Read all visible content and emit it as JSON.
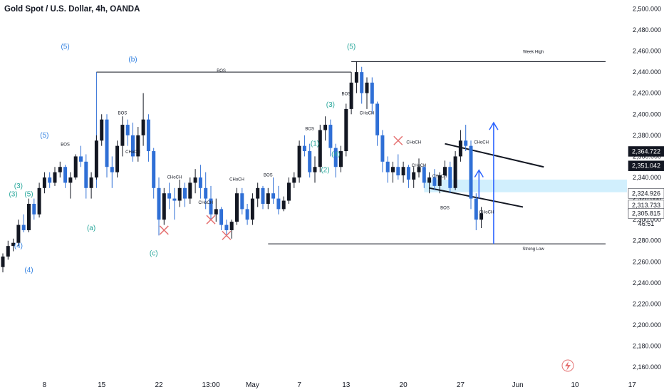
{
  "chart_data": {
    "type": "candlestick",
    "title": "Gold Spot / U.S. Dollar, 4h, OANDA",
    "y_range": [
      2150,
      2505
    ],
    "y_ticks": [
      "2,160.000",
      "2,180.000",
      "2,200.000",
      "2,220.000",
      "2,240.000",
      "2,260.000",
      "2,280.000",
      "2,300.000",
      "2,320.000",
      "2,340.000",
      "2,360.000",
      "2,380.000",
      "2,400.000",
      "2,420.000",
      "2,440.000",
      "2,460.000",
      "2,480.000",
      "2,500.000"
    ],
    "y_tick_values": [
      2160,
      2180,
      2200,
      2220,
      2240,
      2260,
      2280,
      2300,
      2320,
      2340,
      2360,
      2380,
      2400,
      2420,
      2440,
      2460,
      2480,
      2500
    ],
    "x_ticks": [
      {
        "label": "8",
        "i": 8
      },
      {
        "label": "15",
        "i": 19
      },
      {
        "label": "22",
        "i": 30
      },
      {
        "label": "13:00",
        "i": 40
      },
      {
        "label": "May",
        "i": 48
      },
      {
        "label": "7",
        "i": 57
      },
      {
        "label": "13",
        "i": 66
      },
      {
        "label": "20",
        "i": 77
      },
      {
        "label": "27",
        "i": 88
      },
      {
        "label": "Jun",
        "i": 99
      },
      {
        "label": "10",
        "i": 110
      },
      {
        "label": "17",
        "i": 121
      }
    ],
    "candles": [
      [
        2255,
        2268,
        2250,
        2265
      ],
      [
        2265,
        2280,
        2262,
        2275
      ],
      [
        2275,
        2282,
        2270,
        2278
      ],
      [
        2278,
        2300,
        2275,
        2295
      ],
      [
        2295,
        2305,
        2288,
        2290
      ],
      [
        2290,
        2320,
        2288,
        2315
      ],
      [
        2315,
        2320,
        2300,
        2305
      ],
      [
        2305,
        2335,
        2302,
        2330
      ],
      [
        2330,
        2345,
        2325,
        2340
      ],
      [
        2340,
        2345,
        2330,
        2335
      ],
      [
        2335,
        2350,
        2332,
        2345
      ],
      [
        2345,
        2355,
        2340,
        2350
      ],
      [
        2350,
        2352,
        2330,
        2335
      ],
      [
        2335,
        2345,
        2320,
        2340
      ],
      [
        2340,
        2362,
        2338,
        2360
      ],
      [
        2360,
        2370,
        2350,
        2355
      ],
      [
        2355,
        2362,
        2320,
        2330
      ],
      [
        2330,
        2345,
        2320,
        2340
      ],
      [
        2340,
        2380,
        2338,
        2375
      ],
      [
        2375,
        2400,
        2370,
        2395
      ],
      [
        2395,
        2400,
        2340,
        2350
      ],
      [
        2350,
        2360,
        2330,
        2345
      ],
      [
        2345,
        2375,
        2340,
        2370
      ],
      [
        2370,
        2398,
        2360,
        2390
      ],
      [
        2390,
        2395,
        2370,
        2380
      ],
      [
        2380,
        2392,
        2355,
        2360
      ],
      [
        2360,
        2388,
        2355,
        2380
      ],
      [
        2380,
        2420,
        2370,
        2395
      ],
      [
        2395,
        2400,
        2355,
        2365
      ],
      [
        2365,
        2368,
        2320,
        2330
      ],
      [
        2330,
        2340,
        2285,
        2300
      ],
      [
        2300,
        2330,
        2295,
        2325
      ],
      [
        2325,
        2335,
        2310,
        2320
      ],
      [
        2320,
        2330,
        2300,
        2318
      ],
      [
        2318,
        2338,
        2312,
        2330
      ],
      [
        2330,
        2335,
        2312,
        2320
      ],
      [
        2320,
        2340,
        2315,
        2335
      ],
      [
        2335,
        2348,
        2325,
        2340
      ],
      [
        2340,
        2352,
        2320,
        2330
      ],
      [
        2330,
        2345,
        2310,
        2320
      ],
      [
        2320,
        2332,
        2300,
        2305
      ],
      [
        2305,
        2320,
        2298,
        2310
      ],
      [
        2310,
        2312,
        2290,
        2295
      ],
      [
        2295,
        2300,
        2285,
        2290
      ],
      [
        2290,
        2300,
        2282,
        2298
      ],
      [
        2298,
        2330,
        2295,
        2325
      ],
      [
        2325,
        2330,
        2305,
        2310
      ],
      [
        2310,
        2315,
        2295,
        2300
      ],
      [
        2300,
        2325,
        2295,
        2320
      ],
      [
        2320,
        2335,
        2312,
        2330
      ],
      [
        2330,
        2332,
        2310,
        2315
      ],
      [
        2315,
        2330,
        2310,
        2325
      ],
      [
        2325,
        2340,
        2315,
        2320
      ],
      [
        2320,
        2332,
        2305,
        2310
      ],
      [
        2310,
        2322,
        2308,
        2318
      ],
      [
        2318,
        2340,
        2315,
        2335
      ],
      [
        2335,
        2345,
        2330,
        2340
      ],
      [
        2340,
        2375,
        2335,
        2370
      ],
      [
        2370,
        2380,
        2360,
        2365
      ],
      [
        2365,
        2372,
        2340,
        2345
      ],
      [
        2345,
        2360,
        2335,
        2350
      ],
      [
        2350,
        2390,
        2345,
        2385
      ],
      [
        2385,
        2398,
        2375,
        2390
      ],
      [
        2390,
        2395,
        2360,
        2368
      ],
      [
        2368,
        2372,
        2340,
        2350
      ],
      [
        2350,
        2370,
        2345,
        2365
      ],
      [
        2365,
        2410,
        2360,
        2405
      ],
      [
        2405,
        2440,
        2400,
        2430
      ],
      [
        2430,
        2450,
        2420,
        2440
      ],
      [
        2440,
        2445,
        2410,
        2420
      ],
      [
        2420,
        2435,
        2405,
        2430
      ],
      [
        2430,
        2435,
        2400,
        2410
      ],
      [
        2410,
        2412,
        2370,
        2380
      ],
      [
        2380,
        2385,
        2345,
        2355
      ],
      [
        2355,
        2360,
        2335,
        2345
      ],
      [
        2345,
        2355,
        2335,
        2350
      ],
      [
        2350,
        2362,
        2338,
        2342
      ],
      [
        2342,
        2355,
        2335,
        2350
      ],
      [
        2350,
        2352,
        2330,
        2338
      ],
      [
        2338,
        2350,
        2330,
        2345
      ],
      [
        2345,
        2358,
        2340,
        2350
      ],
      [
        2350,
        2352,
        2330,
        2335
      ],
      [
        2335,
        2345,
        2325,
        2340
      ],
      [
        2340,
        2348,
        2328,
        2332
      ],
      [
        2332,
        2345,
        2325,
        2342
      ],
      [
        2342,
        2356,
        2338,
        2350
      ],
      [
        2350,
        2355,
        2325,
        2330
      ],
      [
        2330,
        2365,
        2328,
        2360
      ],
      [
        2360,
        2385,
        2355,
        2375
      ],
      [
        2375,
        2390,
        2365,
        2370
      ],
      [
        2370,
        2375,
        2310,
        2320
      ],
      [
        2320,
        2325,
        2290,
        2300
      ],
      [
        2300,
        2312,
        2292,
        2306
      ]
    ],
    "annotations": [
      {
        "text": "(5)",
        "i": 12,
        "y": 2462,
        "color": "#2f7fe0"
      },
      {
        "text": "(b)",
        "i": 25,
        "y": 2450,
        "color": "#2f7fe0"
      },
      {
        "text": "BOS",
        "i": 42,
        "y": 2440,
        "color": "#131722"
      },
      {
        "text": "(5)",
        "i": 67,
        "y": 2462,
        "color": "#26a69a"
      },
      {
        "text": "Week High",
        "i": 102,
        "y": 2458,
        "color": "#131722"
      },
      {
        "text": "BOS",
        "i": 12,
        "y": 2370,
        "color": "#131722"
      },
      {
        "text": "BOS",
        "i": 23,
        "y": 2400,
        "color": "#131722"
      },
      {
        "text": "(5)",
        "i": 8,
        "y": 2378,
        "color": "#2f7fe0"
      },
      {
        "text": "(3)",
        "i": 3,
        "y": 2330,
        "color": "#26a69a"
      },
      {
        "text": "(5)",
        "i": 5,
        "y": 2322,
        "color": "#26a69a"
      },
      {
        "text": "(3)",
        "i": 2,
        "y": 2322,
        "color": "#26a69a"
      },
      {
        "text": "(4)",
        "i": 3,
        "y": 2273,
        "color": "#2f7fe0"
      },
      {
        "text": "(4)",
        "i": 5,
        "y": 2250,
        "color": "#2f7fe0"
      },
      {
        "text": "(a)",
        "i": 17,
        "y": 2290,
        "color": "#26a69a"
      },
      {
        "text": "(c)",
        "i": 29,
        "y": 2266,
        "color": "#26a69a"
      },
      {
        "text": "CHoCH",
        "i": 25,
        "y": 2363,
        "color": "#131722"
      },
      {
        "text": "CHoCH",
        "i": 33,
        "y": 2339,
        "color": "#131722"
      },
      {
        "text": "CHoCH",
        "i": 39,
        "y": 2315,
        "color": "#131722"
      },
      {
        "text": "CHoCH",
        "i": 45,
        "y": 2337,
        "color": "#131722"
      },
      {
        "text": "BOS",
        "i": 51,
        "y": 2341,
        "color": "#131722"
      },
      {
        "text": "BOS",
        "i": 59,
        "y": 2385,
        "color": "#131722"
      },
      {
        "text": "(1)",
        "i": 60,
        "y": 2370,
        "color": "#26a69a"
      },
      {
        "text": "(2)",
        "i": 62,
        "y": 2345,
        "color": "#26a69a"
      },
      {
        "text": "(3)",
        "i": 63,
        "y": 2407,
        "color": "#26a69a"
      },
      {
        "text": "(4)",
        "i": 64,
        "y": 2360,
        "color": "#26a69a"
      },
      {
        "text": "BOS",
        "i": 66,
        "y": 2418,
        "color": "#131722"
      },
      {
        "text": "CHoCH",
        "i": 70,
        "y": 2400,
        "color": "#131722"
      },
      {
        "text": "CHoCH",
        "i": 79,
        "y": 2372,
        "color": "#131722"
      },
      {
        "text": "CHoCH",
        "i": 80,
        "y": 2350,
        "color": "#131722"
      },
      {
        "text": "CHoCH",
        "i": 84,
        "y": 2340,
        "color": "#131722"
      },
      {
        "text": "CHoCH",
        "i": 92,
        "y": 2372,
        "color": "#131722"
      },
      {
        "text": "BOS",
        "i": 85,
        "y": 2310,
        "color": "#131722"
      },
      {
        "text": "CHoCH",
        "i": 93,
        "y": 2306,
        "color": "#131722"
      },
      {
        "text": "Strong Low",
        "i": 102,
        "y": 2271,
        "color": "#131722"
      }
    ],
    "price_labels": [
      {
        "text": "2,364.722",
        "y": 2364.722,
        "color": "#131722"
      },
      {
        "text": "2,351.042",
        "y": 2351.042,
        "color": "#131722"
      },
      {
        "text": "2,324.926",
        "y": 2324.926,
        "color": "#131722"
      },
      {
        "text": "2,313.733",
        "y": 2313.733,
        "color": "#131722"
      },
      {
        "text": "2,305.815",
        "y": 2305.815,
        "color": "#131722"
      }
    ],
    "countdown": "46:51",
    "week_high": 2450,
    "strong_low": 2277,
    "grid": false
  },
  "colors": {
    "up": "#131722",
    "down": "#2f6fd6",
    "accent": "#2962ff",
    "zone": "#b3e5fc",
    "cross": "#e57373"
  }
}
